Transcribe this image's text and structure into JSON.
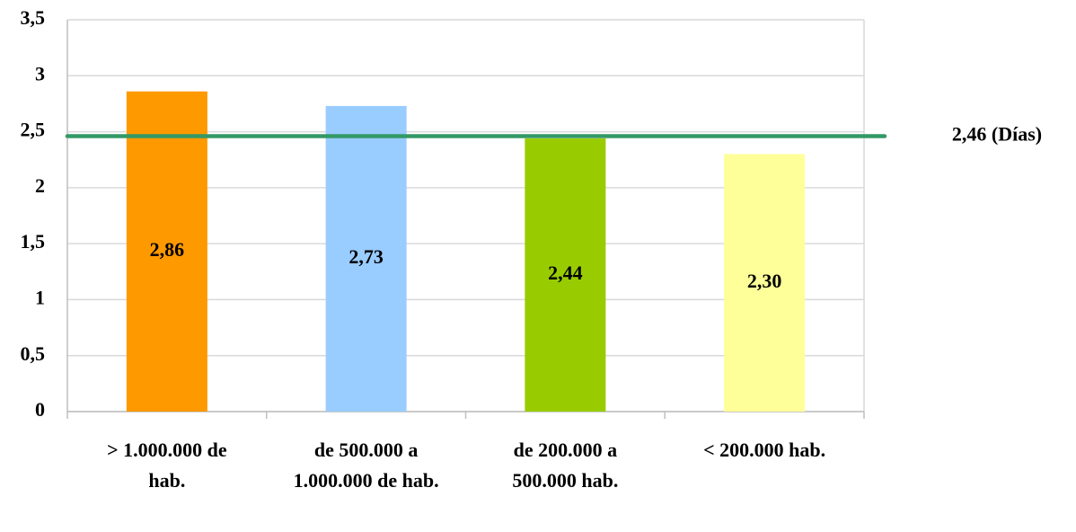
{
  "chart_data": {
    "type": "bar",
    "categories": [
      "> 1.000.000 de hab.",
      "de 500.000 a 1.000.000 de hab.",
      "de 200.000 a 500.000 hab.",
      "< 200.000 hab."
    ],
    "values": [
      2.86,
      2.73,
      2.44,
      2.3
    ],
    "value_labels": [
      "2,86",
      "2,73",
      "2,44",
      "2,30"
    ],
    "colors": [
      "#ff9900",
      "#99ccff",
      "#99cc00",
      "#ffff99"
    ],
    "ylim": [
      0,
      3.5
    ],
    "yticks": [
      0,
      {
        "value": 0.5,
        "label": "0,5"
      },
      1,
      {
        "value": 1.5,
        "label": "1,5"
      },
      2,
      {
        "value": 2.5,
        "label": "2,5"
      },
      3,
      {
        "value": 3.5,
        "label": "3,5"
      }
    ],
    "grid": true,
    "reference_line": {
      "value": 2.46,
      "label": "2,46 (Días)",
      "color": "#339966"
    }
  }
}
